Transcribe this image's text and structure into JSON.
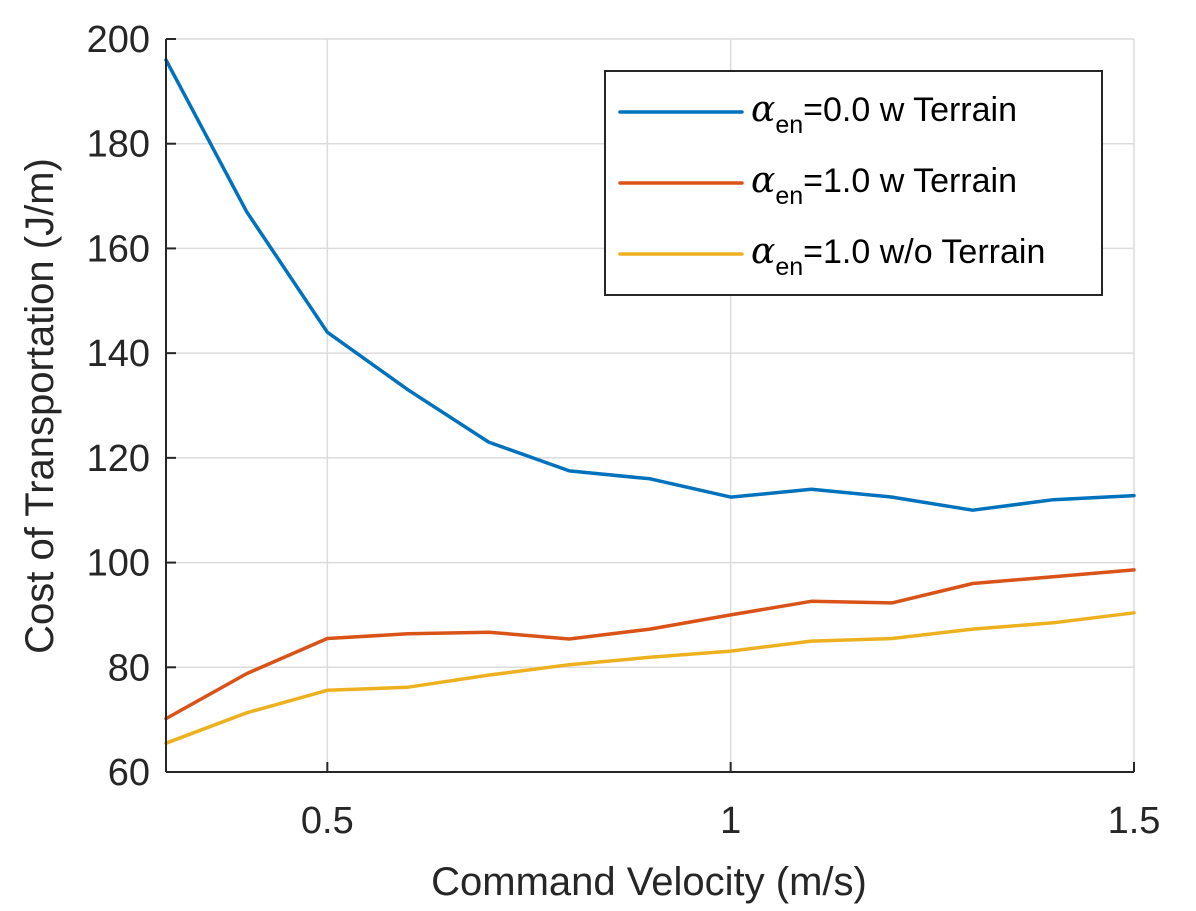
{
  "chart_data": {
    "type": "line",
    "title": "",
    "xlabel": "Command Velocity (m/s)",
    "ylabel": "Cost of Transportation (J/m)",
    "xlim": [
      0.3,
      1.5
    ],
    "ylim": [
      60,
      200
    ],
    "xticks": [
      0.5,
      1,
      1.5
    ],
    "xtick_labels": [
      "0.5",
      "1",
      "1.5"
    ],
    "yticks": [
      60,
      80,
      100,
      120,
      140,
      160,
      180,
      200
    ],
    "ytick_labels": [
      "60",
      "80",
      "100",
      "120",
      "140",
      "160",
      "180",
      "200"
    ],
    "grid": true,
    "legend_position": "top-right",
    "x": [
      0.3,
      0.4,
      0.5,
      0.6,
      0.7,
      0.8,
      0.9,
      1.0,
      1.1,
      1.2,
      1.3,
      1.4,
      1.5
    ],
    "series": [
      {
        "name": "α_en=0.0 w Terrain",
        "legend_symbol": "α",
        "legend_sub": "en",
        "legend_rest": "=0.0 w Terrain",
        "color": "#0072BD",
        "values": [
          196,
          167,
          144,
          133,
          123,
          117.5,
          116,
          112.5,
          114,
          112.5,
          110,
          112,
          112.8
        ]
      },
      {
        "name": "α_en=1.0 w Terrain",
        "legend_symbol": "α",
        "legend_sub": "en",
        "legend_rest": "=1.0 w Terrain",
        "color": "#D95319",
        "values": [
          70.2,
          78.8,
          85.5,
          86.4,
          86.7,
          85.4,
          87.3,
          90,
          92.6,
          92.3,
          96,
          97.3,
          98.6
        ]
      },
      {
        "name": "α_en=1.0 w/o Terrain",
        "legend_symbol": "α",
        "legend_sub": "en",
        "legend_rest": "=1.0 w/o Terrain",
        "color": "#EDB120",
        "values": [
          65.5,
          71.3,
          75.6,
          76.2,
          78.5,
          80.5,
          81.9,
          83.1,
          85,
          85.5,
          87.3,
          88.5,
          90.4
        ]
      }
    ]
  }
}
